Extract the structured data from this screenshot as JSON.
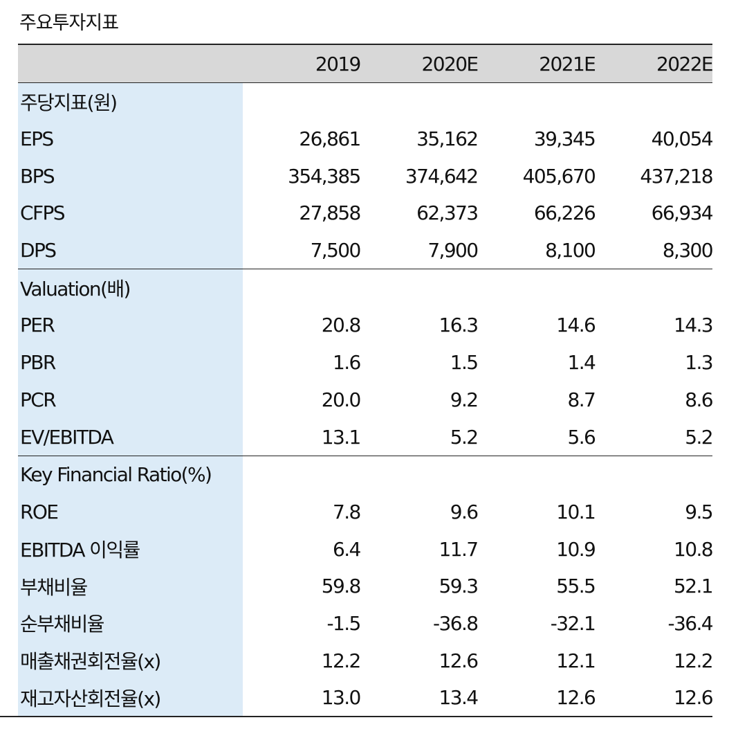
{
  "title": "주요투자지표",
  "columns": [
    "2019",
    "2020E",
    "2021E",
    "2022E"
  ],
  "sections": [
    {
      "name": "주당지표(원)",
      "rows": [
        {
          "label": "EPS",
          "values": [
            "26,861",
            "35,162",
            "39,345",
            "40,054"
          ]
        },
        {
          "label": "BPS",
          "values": [
            "354,385",
            "374,642",
            "405,670",
            "437,218"
          ]
        },
        {
          "label": "CFPS",
          "values": [
            "27,858",
            "62,373",
            "66,226",
            "66,934"
          ]
        },
        {
          "label": "DPS",
          "values": [
            "7,500",
            "7,900",
            "8,100",
            "8,300"
          ]
        }
      ]
    },
    {
      "name": "Valuation(배)",
      "rows": [
        {
          "label": "PER",
          "values": [
            "20.8",
            "16.3",
            "14.6",
            "14.3"
          ]
        },
        {
          "label": "PBR",
          "values": [
            "1.6",
            "1.5",
            "1.4",
            "1.3"
          ]
        },
        {
          "label": "PCR",
          "values": [
            "20.0",
            "9.2",
            "8.7",
            "8.6"
          ]
        },
        {
          "label": "EV/EBITDA",
          "values": [
            "13.1",
            "5.2",
            "5.6",
            "5.2"
          ]
        }
      ]
    },
    {
      "name": "Key Financial Ratio(%)",
      "rows": [
        {
          "label": "ROE",
          "values": [
            "7.8",
            "9.6",
            "10.1",
            "9.5"
          ]
        },
        {
          "label": "EBITDA 이익률",
          "values": [
            "6.4",
            "11.7",
            "10.9",
            "10.8"
          ]
        },
        {
          "label": "부채비율",
          "values": [
            "59.8",
            "59.3",
            "55.5",
            "52.1"
          ]
        },
        {
          "label": "순부채비율",
          "values": [
            "-1.5",
            "-36.8",
            "-32.1",
            "-36.4"
          ]
        },
        {
          "label": "매출채권회전율(x)",
          "values": [
            "12.2",
            "12.6",
            "12.1",
            "12.2"
          ]
        },
        {
          "label": "재고자산회전율(x)",
          "values": [
            "13.0",
            "13.4",
            "12.6",
            "12.6"
          ]
        }
      ]
    }
  ]
}
